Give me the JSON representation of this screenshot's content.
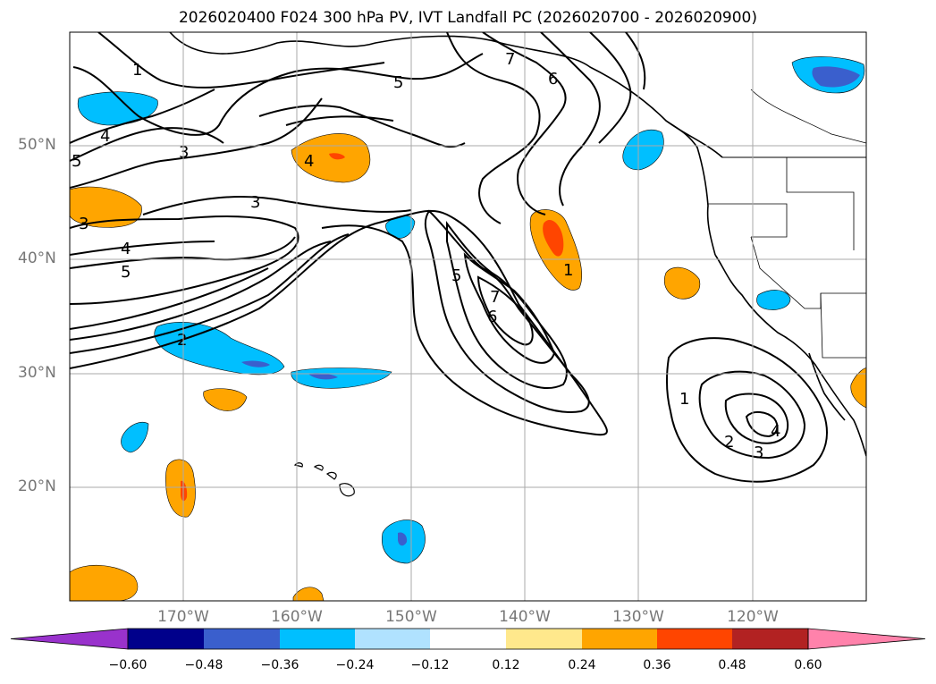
{
  "title": "2026020400 F024 300 hPa PV, IVT Landfall PC (2026020700 - 2026020900)",
  "map": {
    "lon_labels": [
      "170°W",
      "160°W",
      "150°W",
      "140°W",
      "130°W",
      "120°W"
    ],
    "lat_labels": [
      "50°N",
      "40°N",
      "30°N",
      "20°N"
    ],
    "lon_range": [
      -180,
      -110
    ],
    "lat_range": [
      10,
      60
    ],
    "contour_labels": [
      "1",
      "4",
      "5",
      "3",
      "4",
      "5",
      "3",
      "4",
      "5",
      "2",
      "5",
      "7",
      "6",
      "7",
      "6",
      "1",
      "2",
      "3",
      "4",
      "1",
      "3"
    ]
  },
  "colorbar": {
    "ticks": [
      "−0.60",
      "−0.48",
      "−0.36",
      "−0.24",
      "−0.12",
      "0.12",
      "0.24",
      "0.36",
      "0.48",
      "0.60"
    ],
    "colors": [
      "#9932cc",
      "#00008b",
      "#3a5fcd",
      "#00bfff",
      "#b0e2ff",
      "#ffffff",
      "#ffe88c",
      "#ffa500",
      "#ff4500",
      "#b22222",
      "#ff82ab"
    ]
  }
}
